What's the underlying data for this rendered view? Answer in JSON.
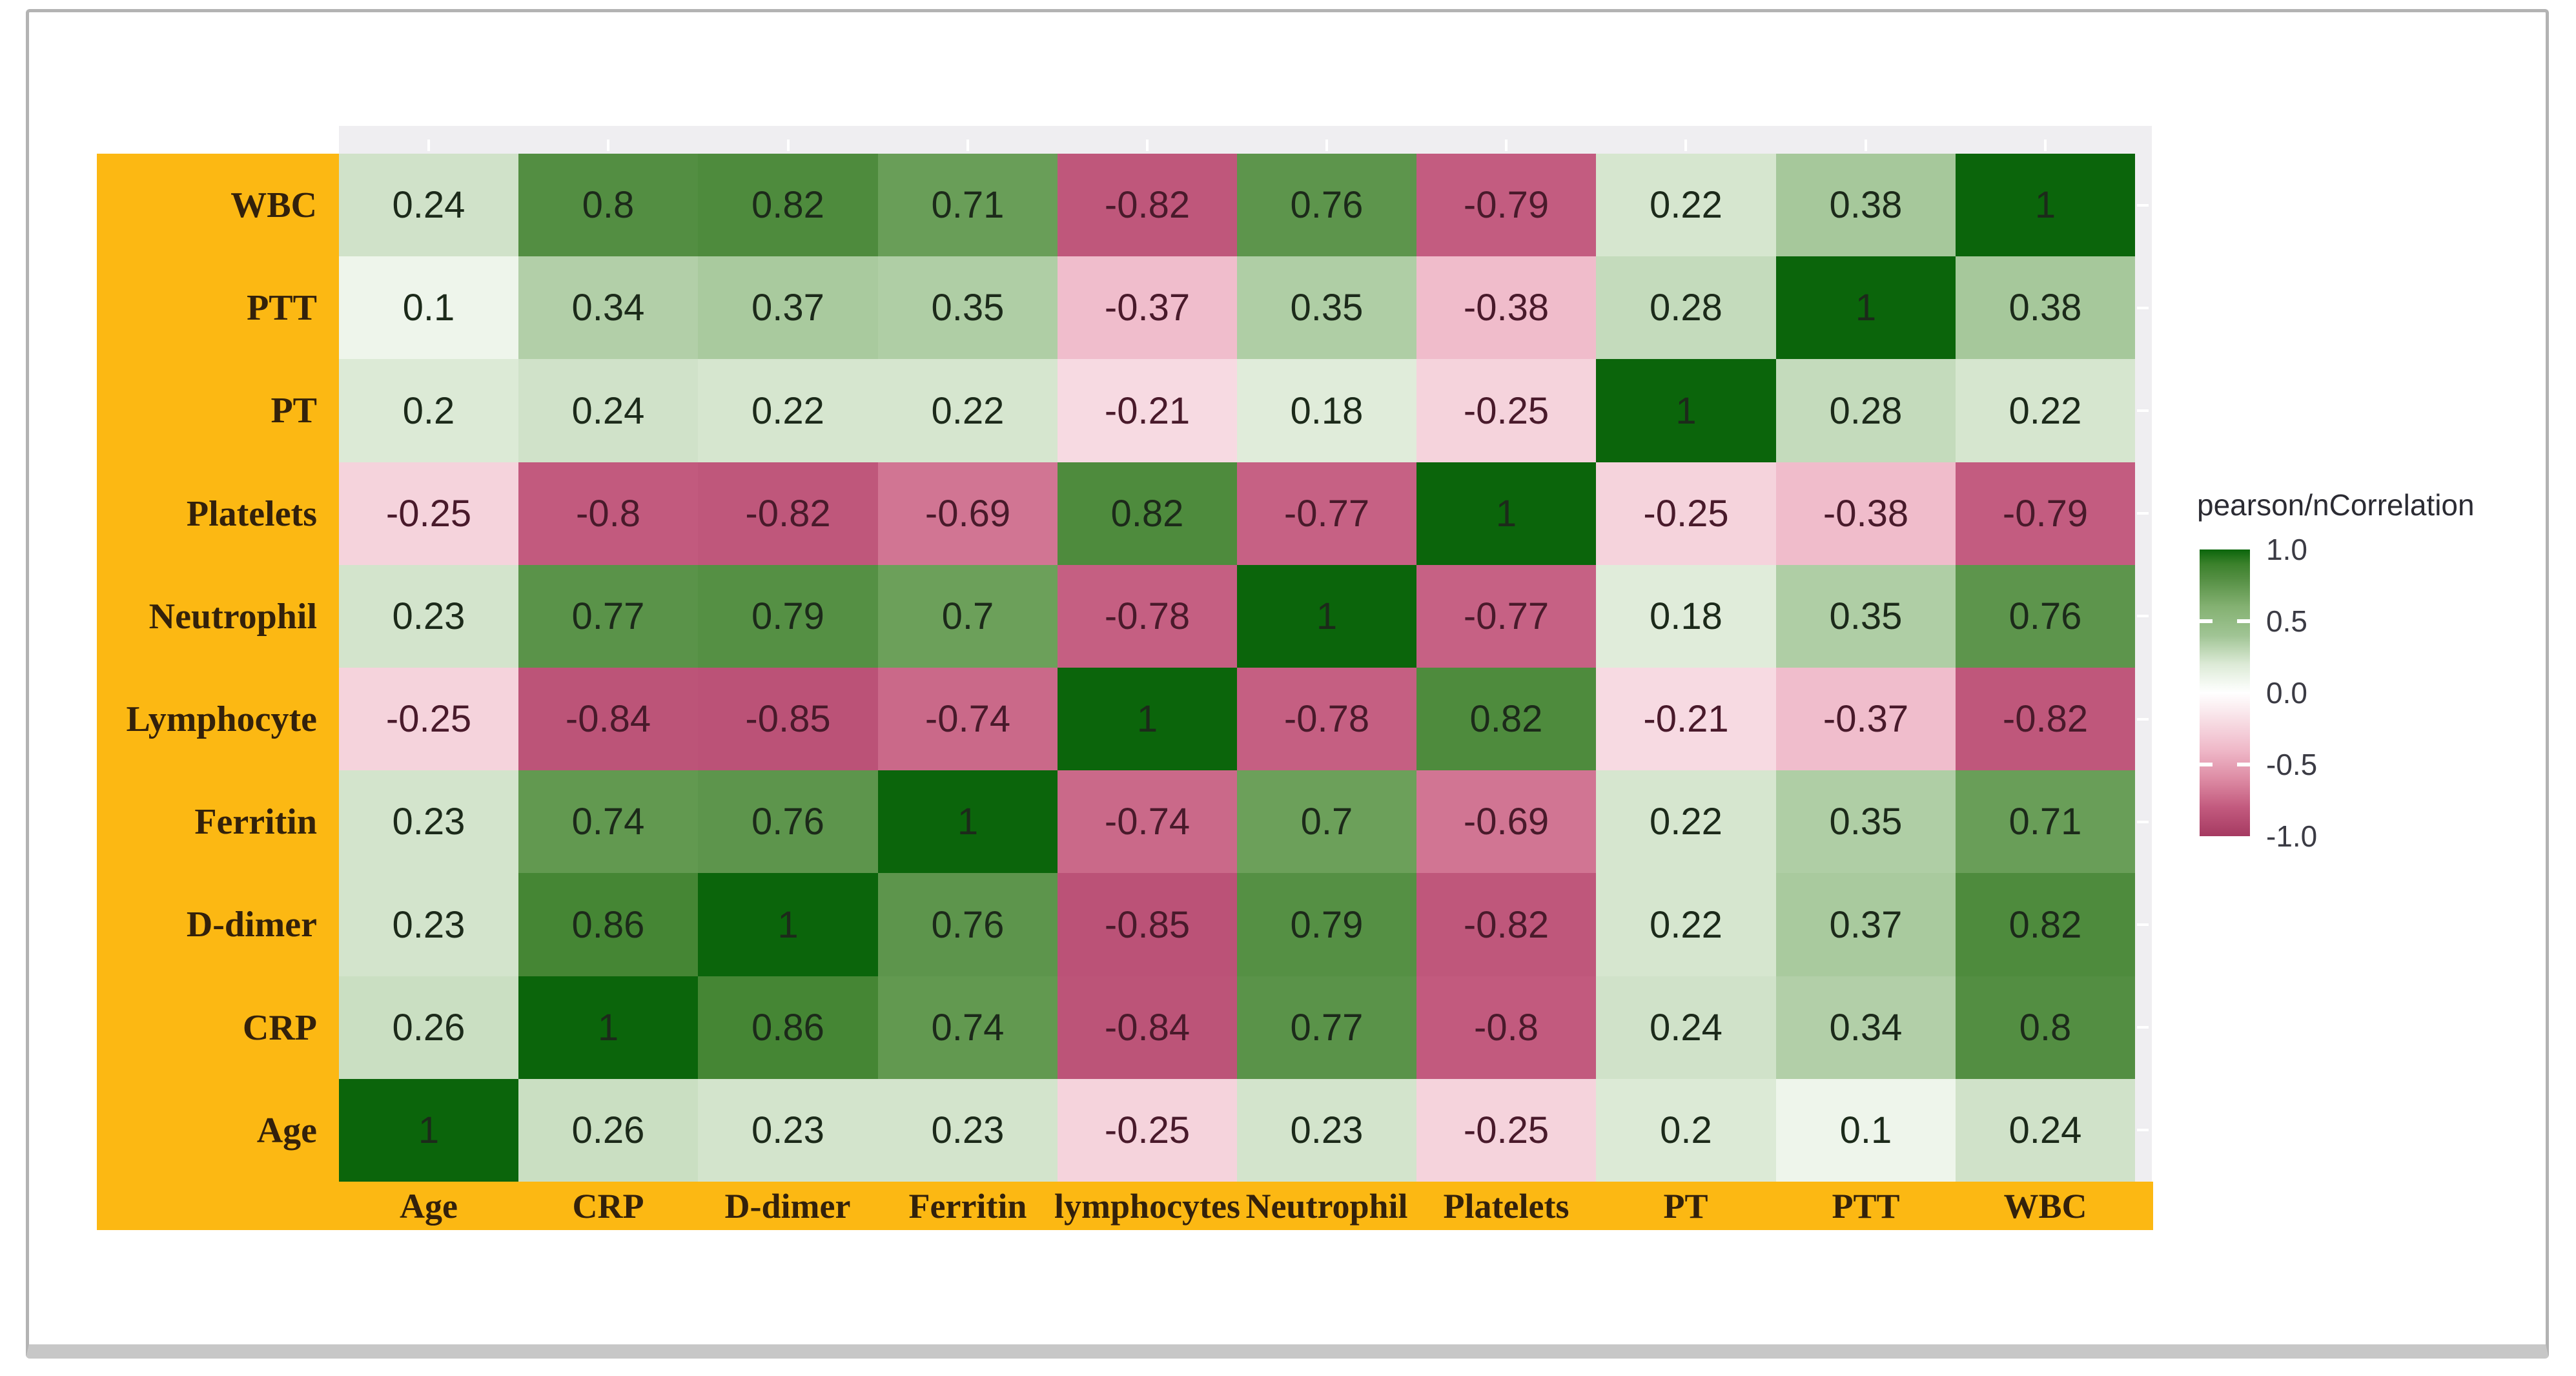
{
  "chart_data": {
    "type": "heatmap",
    "title": "",
    "legend": {
      "title": "pearson/nCorrelation",
      "tick_labels": [
        "1.0",
        "0.5",
        "0.0",
        "-0.5",
        "-1.0"
      ],
      "tick_values": [
        1.0,
        0.5,
        0.0,
        -0.5,
        -1.0
      ],
      "position": "right",
      "high_color": "#0B650B",
      "mid_color": "#FFFFFF",
      "low_color": "#A53A61"
    },
    "y_categories_top_to_bottom": [
      "WBC",
      "PTT",
      "PT",
      "Platelets",
      "Neutrophil",
      "Lymphocyte",
      "Ferritin",
      "D-dimer",
      "CRP",
      "Age"
    ],
    "x_categories_left_to_right": [
      "Age",
      "CRP",
      "D-dimer",
      "Ferritin",
      "lymphocytes",
      "Neutrophil",
      "Platelets",
      "PT",
      "PTT",
      "WBC"
    ],
    "values_by_row": [
      [
        0.24,
        0.8,
        0.82,
        0.71,
        -0.82,
        0.76,
        -0.79,
        0.22,
        0.38,
        1
      ],
      [
        0.1,
        0.34,
        0.37,
        0.35,
        -0.37,
        0.35,
        -0.38,
        0.28,
        1,
        0.38
      ],
      [
        0.2,
        0.24,
        0.22,
        0.22,
        -0.21,
        0.18,
        -0.25,
        1,
        0.28,
        0.22
      ],
      [
        -0.25,
        -0.8,
        -0.82,
        -0.69,
        0.82,
        -0.77,
        1,
        -0.25,
        -0.38,
        -0.79
      ],
      [
        0.23,
        0.77,
        0.79,
        0.7,
        -0.78,
        1,
        -0.77,
        0.18,
        0.35,
        0.76
      ],
      [
        -0.25,
        -0.84,
        -0.85,
        -0.74,
        1,
        -0.78,
        0.82,
        -0.21,
        -0.37,
        -0.82
      ],
      [
        0.23,
        0.74,
        0.76,
        1,
        -0.74,
        0.7,
        -0.69,
        0.22,
        0.35,
        0.71
      ],
      [
        0.23,
        0.86,
        1,
        0.76,
        -0.85,
        0.79,
        -0.82,
        0.22,
        0.37,
        0.82
      ],
      [
        0.26,
        1,
        0.86,
        0.74,
        -0.84,
        0.77,
        -0.8,
        0.24,
        0.34,
        0.8
      ],
      [
        1,
        0.26,
        0.23,
        0.23,
        -0.25,
        0.23,
        -0.25,
        0.2,
        0.1,
        0.24
      ]
    ],
    "value_range": [
      -1,
      1
    ],
    "grid_on": false,
    "styles": {
      "axis_band_color": "#FCB813",
      "axis_label_color": "#33210B",
      "panel_background": "#EFEEF1",
      "frame_border_color": "#B3B3B3",
      "positive_text_color": "#1C2A1A",
      "negative_text_color": "#491A2B"
    }
  }
}
